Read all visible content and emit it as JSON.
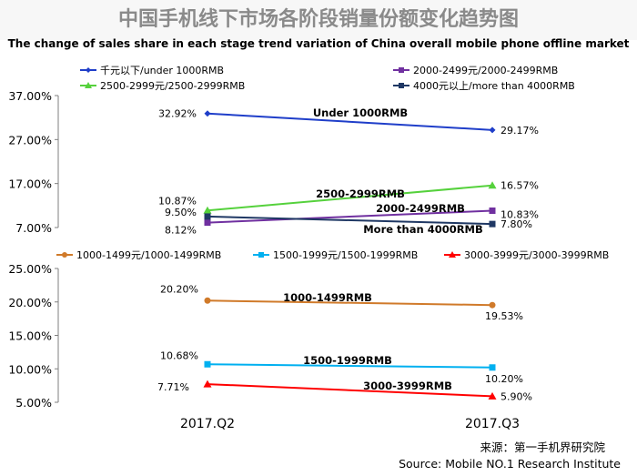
{
  "title": "中国手机线下市场各阶段销量份额变化趋势图",
  "subtitle": "The change of sales share in each stage trend variation of China overall mobile phone offline market",
  "source_cn": "来源：第一手机界研究院",
  "source_en": "Source: Mobile NO.1 Research Institute",
  "colors": {
    "title": "#8a8a8a",
    "under1000": "#1f3ec9",
    "r2000": "#7030a0",
    "r2500": "#55d13c",
    "over4000": "#1f3864",
    "r1000": "#d07a2a",
    "r1500": "#00b0f0",
    "r3000": "#ff0000"
  },
  "chart_data": [
    {
      "type": "line",
      "categories": [
        "2017.Q2",
        "2017.Q3"
      ],
      "ylim": [
        7,
        37
      ],
      "yticks": [
        "37.00%",
        "27.00%",
        "17.00%",
        "7.00%"
      ],
      "grid": false,
      "legend_position": "top",
      "series": [
        {
          "legend": "千元以下/under 1000RMB",
          "tag": "Under 1000RMB",
          "values": [
            32.92,
            29.17
          ],
          "labels": [
            "32.92%",
            "29.17%"
          ],
          "marker": "diamond",
          "color_key": "under1000"
        },
        {
          "legend": "2000-2499元/2000-2499RMB",
          "tag": "2000-2499RMB",
          "values": [
            8.12,
            10.83
          ],
          "labels": [
            "8.12%",
            "10.83%"
          ],
          "marker": "square",
          "color_key": "r2000"
        },
        {
          "legend": "2500-2999元/2500-2999RMB",
          "tag": "2500-2999RMB",
          "values": [
            10.87,
            16.57
          ],
          "labels": [
            "10.87%",
            "16.57%"
          ],
          "marker": "triangle",
          "color_key": "r2500"
        },
        {
          "legend": "4000元以上/more than 4000RMB",
          "tag": "More than 4000RMB",
          "values": [
            9.5,
            7.8
          ],
          "labels": [
            "9.50%",
            "7.80%"
          ],
          "marker": "square",
          "color_key": "over4000"
        }
      ]
    },
    {
      "type": "line",
      "categories": [
        "2017.Q2",
        "2017.Q3"
      ],
      "ylim": [
        5,
        25
      ],
      "yticks": [
        "25.00%",
        "20.00%",
        "15.00%",
        "10.00%",
        "5.00%"
      ],
      "grid": false,
      "legend_position": "top",
      "series": [
        {
          "legend": "1000-1499元/1000-1499RMB",
          "tag": "1000-1499RMB",
          "values": [
            20.2,
            19.53
          ],
          "labels": [
            "20.20%",
            "19.53%"
          ],
          "marker": "circle",
          "color_key": "r1000"
        },
        {
          "legend": "1500-1999元/1500-1999RMB",
          "tag": "1500-1999RMB",
          "values": [
            10.68,
            10.2
          ],
          "labels": [
            "10.68%",
            "10.20%"
          ],
          "marker": "square",
          "color_key": "r1500"
        },
        {
          "legend": "3000-3999元/3000-3999RMB",
          "tag": "3000-3999RMB",
          "values": [
            7.71,
            5.9
          ],
          "labels": [
            "7.71%",
            "5.90%"
          ],
          "marker": "triangle",
          "color_key": "r3000"
        }
      ]
    }
  ]
}
